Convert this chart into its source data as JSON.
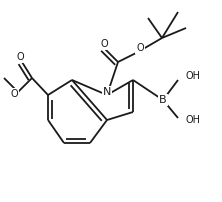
{
  "background": "#ffffff",
  "lc": "#1a1a1a",
  "lw": 1.3,
  "fs": 7.0,
  "figsize": [
    2.22,
    2.02
  ],
  "dpi": 100,
  "xlim": [
    0,
    222
  ],
  "ylim": [
    0,
    202
  ]
}
